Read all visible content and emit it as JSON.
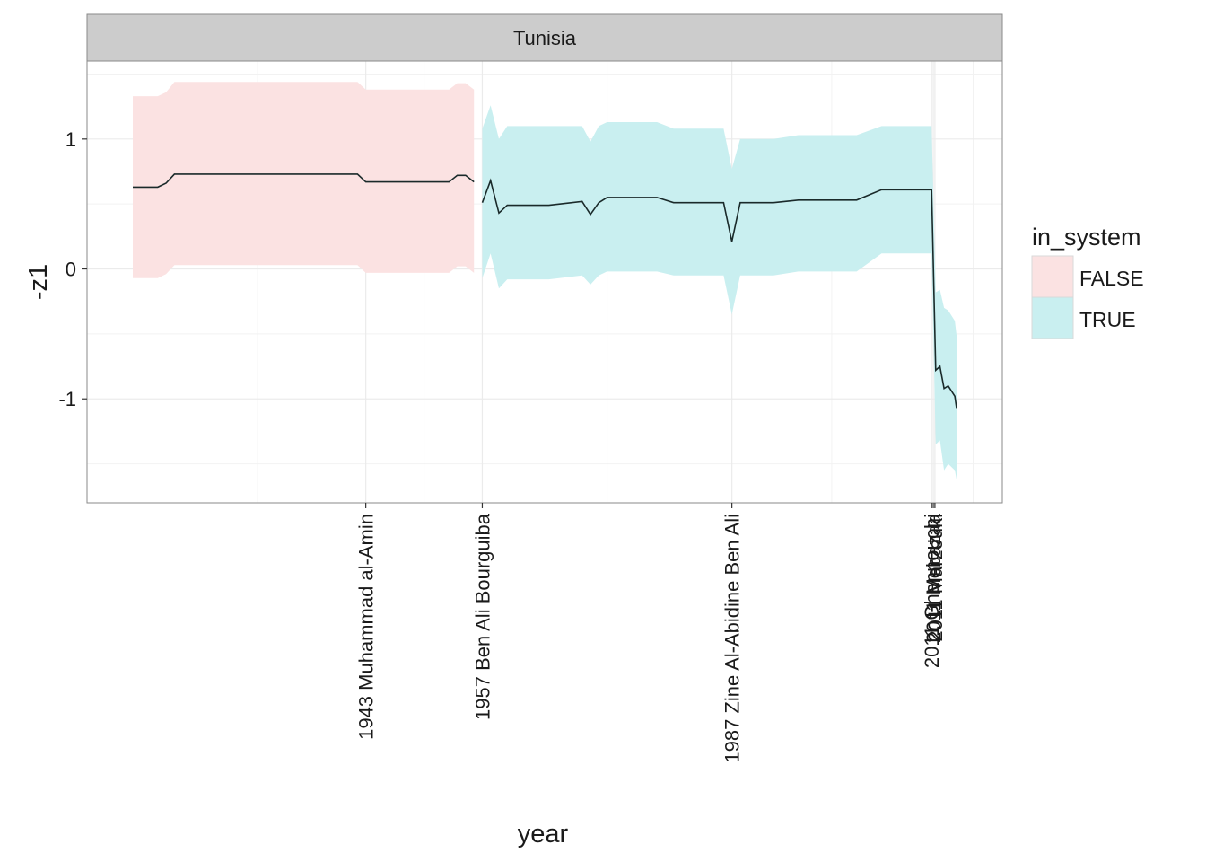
{
  "chart_data": {
    "type": "line",
    "panel_title": "Tunisia",
    "xlabel": "year",
    "ylabel": "-z1",
    "xlim": [
      1909.5,
      2019.5
    ],
    "ylim": [
      -1.8,
      1.6
    ],
    "y_ticks": [
      1,
      0,
      -1
    ],
    "y_tick_labels": [
      "1",
      "0",
      "-1"
    ],
    "x_ticks": [
      1943,
      1957,
      1987,
      2011,
      2011.2,
      2011.4
    ],
    "x_tick_labels": [
      "1943 Muhammad al-Amin",
      "1957 Ben Ali Bourguiba",
      "1987 Zine Al-Abidine Ben Ali",
      "2011 Ghannouchi",
      "2011 Mebazaa",
      "2011 Marzouki"
    ],
    "grid": true,
    "legend": {
      "title": "in_system",
      "position": "right",
      "entries": [
        {
          "label": "FALSE",
          "fill": "#fbe2e2"
        },
        {
          "label": "TRUE",
          "fill": "#c9eff0"
        }
      ]
    },
    "colors": {
      "band_false": "#fbe2e2",
      "band_true": "#c9eff0",
      "line": "#1a2a2a",
      "panel_border": "#8a8a8a",
      "strip_fill": "#cccccc",
      "grid": "#ebebeb"
    },
    "series": [
      {
        "name": "FALSE",
        "x": [
          1915,
          1918,
          1919,
          1920,
          1925,
          1930,
          1935,
          1938,
          1940,
          1942,
          1943,
          1945,
          1950,
          1953,
          1954,
          1955,
          1956
        ],
        "y": [
          0.63,
          0.63,
          0.66,
          0.73,
          0.73,
          0.73,
          0.73,
          0.73,
          0.73,
          0.73,
          0.67,
          0.67,
          0.67,
          0.67,
          0.72,
          0.72,
          0.67
        ],
        "lower": [
          -0.07,
          -0.07,
          -0.04,
          0.03,
          0.03,
          0.03,
          0.03,
          0.03,
          0.03,
          0.03,
          -0.03,
          -0.03,
          -0.03,
          -0.03,
          0.02,
          0.02,
          -0.03
        ],
        "upper": [
          1.33,
          1.33,
          1.36,
          1.44,
          1.44,
          1.44,
          1.44,
          1.44,
          1.44,
          1.44,
          1.38,
          1.38,
          1.38,
          1.38,
          1.43,
          1.43,
          1.38
        ]
      },
      {
        "name": "TRUE",
        "x": [
          1957,
          1958,
          1959,
          1960,
          1965,
          1969,
          1970,
          1971,
          1972,
          1975,
          1978,
          1980,
          1985,
          1986,
          1987,
          1988,
          1990,
          1992,
          1995,
          2000,
          2002,
          2005,
          2010,
          2011,
          2011.5,
          2012,
          2012.5,
          2013,
          2013.8,
          2014
        ],
        "y": [
          0.51,
          0.68,
          0.43,
          0.49,
          0.49,
          0.52,
          0.42,
          0.51,
          0.55,
          0.55,
          0.55,
          0.51,
          0.51,
          0.51,
          0.21,
          0.51,
          0.51,
          0.51,
          0.53,
          0.53,
          0.53,
          0.61,
          0.61,
          0.61,
          -0.78,
          -0.75,
          -0.92,
          -0.9,
          -0.98,
          -1.07
        ],
        "lower": [
          -0.07,
          0.12,
          -0.15,
          -0.08,
          -0.08,
          -0.05,
          -0.12,
          -0.05,
          -0.02,
          -0.02,
          -0.02,
          -0.05,
          -0.05,
          -0.05,
          -0.35,
          -0.05,
          -0.05,
          -0.05,
          -0.02,
          -0.02,
          -0.02,
          0.12,
          0.12,
          0.12,
          -1.35,
          -1.32,
          -1.55,
          -1.5,
          -1.55,
          -1.62
        ],
        "upper": [
          1.08,
          1.26,
          1.0,
          1.1,
          1.1,
          1.1,
          0.98,
          1.1,
          1.13,
          1.13,
          1.13,
          1.08,
          1.08,
          1.08,
          0.77,
          1.0,
          1.0,
          1.0,
          1.03,
          1.03,
          1.03,
          1.1,
          1.1,
          1.1,
          -0.18,
          -0.16,
          -0.3,
          -0.32,
          -0.4,
          -0.51
        ]
      }
    ]
  }
}
